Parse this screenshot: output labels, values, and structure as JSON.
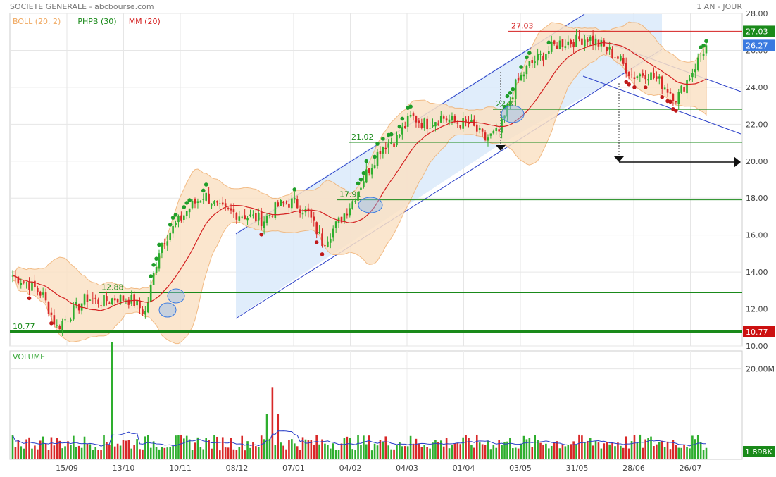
{
  "header": {
    "title": "SOCIETE GENERALE - abcbourse.com",
    "period": "1 AN - JOUR"
  },
  "legend": [
    {
      "label": "BOLL (20, 2)",
      "color": "#f0a860"
    },
    {
      "label": "PHPB (30)",
      "color": "#1a8a1a"
    },
    {
      "label": "MM (20)",
      "color": "#d42020"
    }
  ],
  "colors": {
    "up": "#2eae2e",
    "down": "#d82828",
    "boll_fill": "#fbe2c6",
    "boll_line": "#f0b070",
    "mm": "#d42020",
    "channel": "#2a3fc8",
    "channel_fill": "#d8e8fa",
    "level": "#1a8a1a",
    "volume_avg": "#2a3fc8",
    "label_red": "#d42020",
    "label_green_bg": "#1a8a1a",
    "label_blue_bg": "#3a7ae0"
  },
  "chart_data": [
    {
      "type": "candlestick",
      "title": "SOCIETE GENERALE",
      "ylim": [
        10,
        28
      ],
      "y_ticks": [
        "28.00",
        "26.00",
        "24.00",
        "22.00",
        "20.00",
        "18.00",
        "16.00",
        "14.00",
        "12.00",
        "10.00"
      ],
      "x_ticks": [
        "15/09",
        "13/10",
        "10/11",
        "08/12",
        "07/01",
        "04/02",
        "04/03",
        "01/04",
        "03/05",
        "31/05",
        "28/06",
        "26/07"
      ],
      "close_anchors": [
        {
          "x": "01/09",
          "y": 13.8
        },
        {
          "x": "08/09",
          "y": 13.4
        },
        {
          "x": "15/09",
          "y": 12.8
        },
        {
          "x": "22/09",
          "y": 11.0
        },
        {
          "x": "29/09",
          "y": 11.8
        },
        {
          "x": "06/10",
          "y": 12.6
        },
        {
          "x": "13/10",
          "y": 12.4
        },
        {
          "x": "20/10",
          "y": 12.6
        },
        {
          "x": "27/10",
          "y": 12.5
        },
        {
          "x": "03/11",
          "y": 11.8
        },
        {
          "x": "10/11",
          "y": 15.5
        },
        {
          "x": "17/11",
          "y": 16.5
        },
        {
          "x": "24/11",
          "y": 17.5
        },
        {
          "x": "01/12",
          "y": 18.2
        },
        {
          "x": "08/12",
          "y": 17.4
        },
        {
          "x": "15/12",
          "y": 17.2
        },
        {
          "x": "22/12",
          "y": 17.0
        },
        {
          "x": "29/12",
          "y": 16.8
        },
        {
          "x": "07/01",
          "y": 17.6
        },
        {
          "x": "14/01",
          "y": 17.8
        },
        {
          "x": "21/01",
          "y": 17.2
        },
        {
          "x": "28/01",
          "y": 15.6
        },
        {
          "x": "04/02",
          "y": 16.6
        },
        {
          "x": "11/02",
          "y": 17.8
        },
        {
          "x": "18/02",
          "y": 19.4
        },
        {
          "x": "25/02",
          "y": 20.8
        },
        {
          "x": "04/03",
          "y": 21.2
        },
        {
          "x": "11/03",
          "y": 22.4
        },
        {
          "x": "18/03",
          "y": 22.0
        },
        {
          "x": "25/03",
          "y": 22.4
        },
        {
          "x": "01/04",
          "y": 22.1
        },
        {
          "x": "08/04",
          "y": 22.0
        },
        {
          "x": "15/04",
          "y": 21.2
        },
        {
          "x": "22/04",
          "y": 21.6
        },
        {
          "x": "03/05",
          "y": 24.0
        },
        {
          "x": "10/05",
          "y": 25.2
        },
        {
          "x": "17/05",
          "y": 25.8
        },
        {
          "x": "24/05",
          "y": 26.4
        },
        {
          "x": "31/05",
          "y": 26.5
        },
        {
          "x": "07/06",
          "y": 26.7
        },
        {
          "x": "14/06",
          "y": 26.2
        },
        {
          "x": "21/06",
          "y": 25.6
        },
        {
          "x": "28/06",
          "y": 24.6
        },
        {
          "x": "05/07",
          "y": 24.8
        },
        {
          "x": "12/07",
          "y": 24.2
        },
        {
          "x": "19/07",
          "y": 23.4
        },
        {
          "x": "26/07",
          "y": 24.8
        },
        {
          "x": "02/08",
          "y": 26.27
        }
      ],
      "levels": [
        {
          "label": "10.77",
          "value": 10.77,
          "color": "#1a8a1a",
          "thick": true
        },
        {
          "label": "12.88",
          "value": 12.88,
          "color": "#1a8a1a"
        },
        {
          "label": "17.91",
          "value": 17.91,
          "color": "#1a8a1a"
        },
        {
          "label": "21.02",
          "value": 21.02,
          "color": "#1a8a1a"
        },
        {
          "label": "22.81",
          "value": 22.81,
          "color": "#1a8a1a"
        },
        {
          "label": "27.03",
          "value": 27.03,
          "color": "#d42020"
        }
      ],
      "price_labels": [
        {
          "label": "27.03",
          "value": 27.03,
          "bg": "#1a8a1a"
        },
        {
          "label": "26.27",
          "value": 26.27,
          "bg": "#3a7ae0"
        },
        {
          "label": "10.77",
          "value": 10.77,
          "bg": "#cc1010"
        }
      ]
    },
    {
      "type": "bar",
      "title": "VOLUME",
      "y_ticks": [
        "20.00M"
      ],
      "last_label": "1 898K"
    }
  ]
}
